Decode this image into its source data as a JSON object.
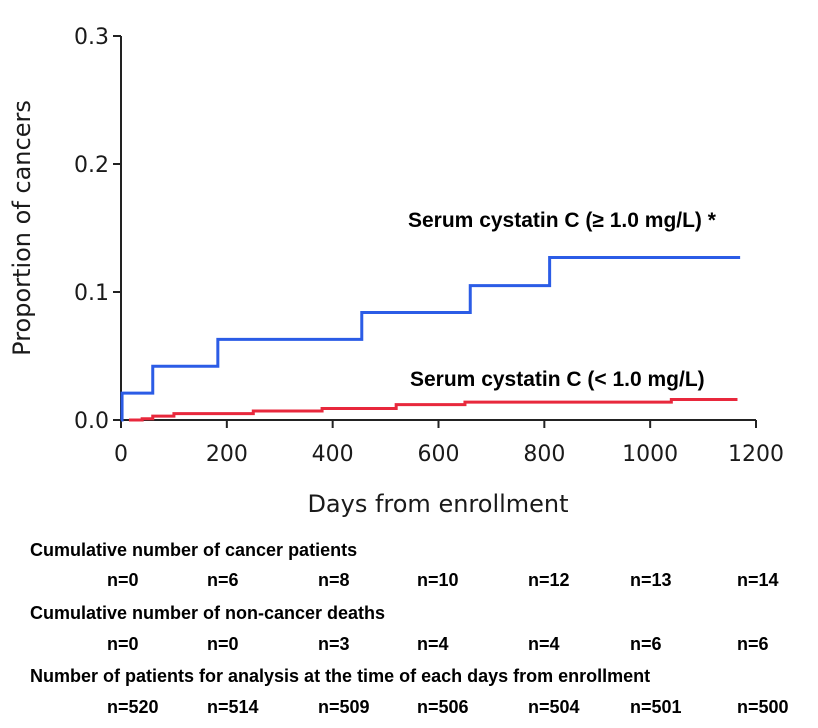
{
  "chart_data": {
    "type": "line",
    "step": true,
    "xlabel": "Days from enrollment",
    "ylabel": "Proportion of cancers",
    "xlim": [
      0,
      1200
    ],
    "ylim": [
      0,
      0.3
    ],
    "xticks": [
      "0",
      "200",
      "400",
      "600",
      "800",
      "1000",
      "1200"
    ],
    "yticks": [
      "0.0",
      "0.1",
      "0.2",
      "0.3"
    ],
    "series": [
      {
        "name": "Serum cystatin C (≥ 1.0 mg/L) *",
        "color": "#2b5ce6",
        "x": [
          0,
          2,
          60,
          183,
          455,
          660,
          810,
          1170
        ],
        "y": [
          0,
          0.021,
          0.042,
          0.063,
          0.084,
          0.105,
          0.127,
          0.127
        ]
      },
      {
        "name": "Serum cystatin C (< 1.0 mg/L)",
        "color": "#e8283c",
        "x": [
          15,
          40,
          60,
          100,
          250,
          380,
          520,
          650,
          1040,
          1165
        ],
        "y": [
          0,
          0.001,
          0.003,
          0.005,
          0.007,
          0.009,
          0.012,
          0.014,
          0.016,
          0.016
        ]
      }
    ]
  },
  "risk_table": [
    {
      "title": "Cumulative number of cancer patients",
      "values": [
        "n=0",
        "n=6",
        "n=8",
        "n=10",
        "n=12",
        "n=13",
        "n=14"
      ]
    },
    {
      "title": "Cumulative number of non-cancer deaths",
      "values": [
        "n=0",
        "n=0",
        "n=3",
        "n=4",
        "n=4",
        "n=6",
        "n=6"
      ]
    },
    {
      "title": "Number of patients for analysis at the time of each days from enrollment",
      "values": [
        "n=520",
        "n=514",
        "n=509",
        "n=506",
        "n=504",
        "n=501",
        "n=500"
      ]
    }
  ]
}
